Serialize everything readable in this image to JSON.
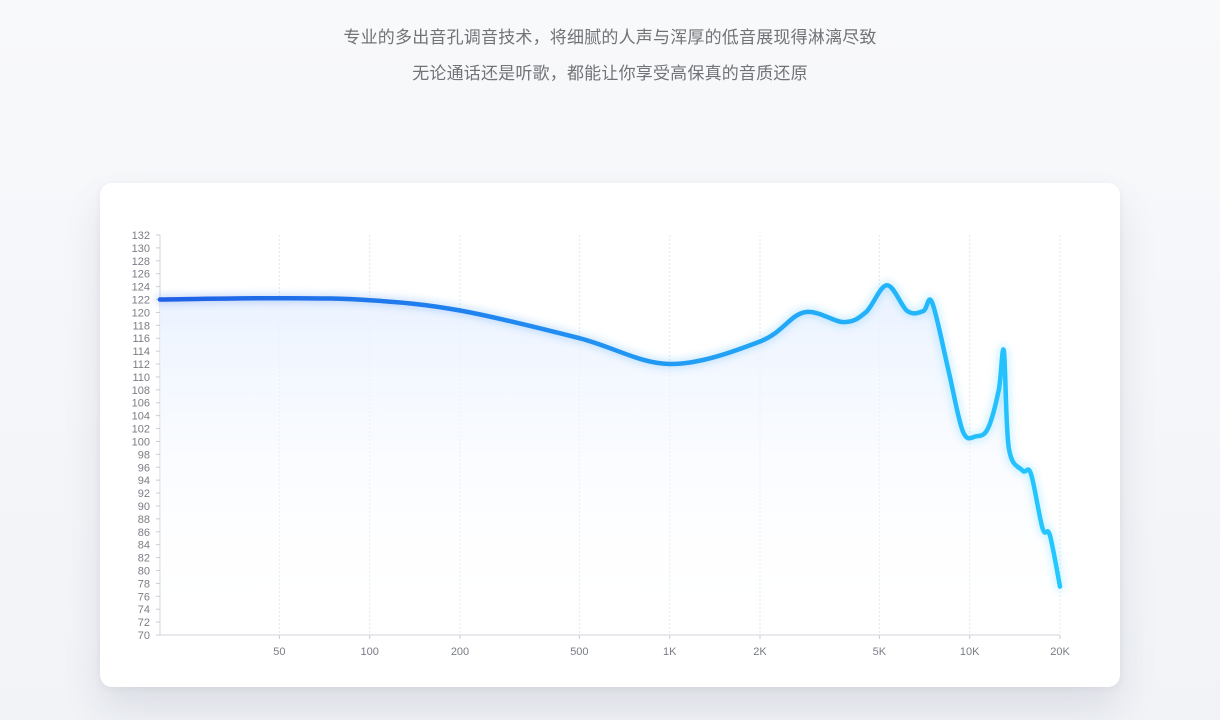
{
  "intro": {
    "line1": "专业的多出音孔调音技术，将细腻的人声与浑厚的低音展现得淋漓尽致",
    "line2": "无论通话还是听歌，都能让你享受高保真的音质还原"
  },
  "colors": {
    "curve_start": "#1f5fe6",
    "curve_end": "#23c8ff",
    "grid": "#e5e7ec",
    "fill": "#e9f1ff"
  },
  "chart_data": {
    "type": "line",
    "x_scale": "log",
    "x_range": [
      20,
      20000
    ],
    "y_range": [
      70,
      132
    ],
    "grid": true,
    "x_ticks": [
      {
        "label": "50",
        "value": 50
      },
      {
        "label": "100",
        "value": 100
      },
      {
        "label": "200",
        "value": 200
      },
      {
        "label": "500",
        "value": 500
      },
      {
        "label": "1K",
        "value": 1000
      },
      {
        "label": "2K",
        "value": 2000
      },
      {
        "label": "5K",
        "value": 5000
      },
      {
        "label": "10K",
        "value": 10000
      },
      {
        "label": "20K",
        "value": 20000
      }
    ],
    "y_ticks": [
      132,
      130,
      128,
      126,
      124,
      122,
      120,
      118,
      116,
      114,
      112,
      110,
      108,
      106,
      104,
      102,
      100,
      98,
      96,
      94,
      92,
      90,
      88,
      86,
      84,
      82,
      80,
      78,
      76,
      74,
      72,
      70
    ],
    "series": [
      {
        "points": [
          [
            20,
            122
          ],
          [
            50,
            122.2
          ],
          [
            100,
            121.9
          ],
          [
            200,
            120.3
          ],
          [
            500,
            116.0
          ],
          [
            1000,
            112.0
          ],
          [
            2000,
            115.5
          ],
          [
            2800,
            120.0
          ],
          [
            3800,
            118.5
          ],
          [
            4500,
            120.0
          ],
          [
            5300,
            124.2
          ],
          [
            6200,
            120.2
          ],
          [
            7000,
            120.2
          ],
          [
            7500,
            121.5
          ],
          [
            8500,
            111.0
          ],
          [
            9500,
            101.5
          ],
          [
            10500,
            100.8
          ],
          [
            11500,
            102.0
          ],
          [
            12500,
            108.0
          ],
          [
            13000,
            114.0
          ],
          [
            13500,
            99.0
          ],
          [
            15000,
            95.5
          ],
          [
            16000,
            95.0
          ],
          [
            17500,
            86.5
          ],
          [
            18500,
            85.5
          ],
          [
            20000,
            77.5
          ]
        ]
      }
    ]
  }
}
